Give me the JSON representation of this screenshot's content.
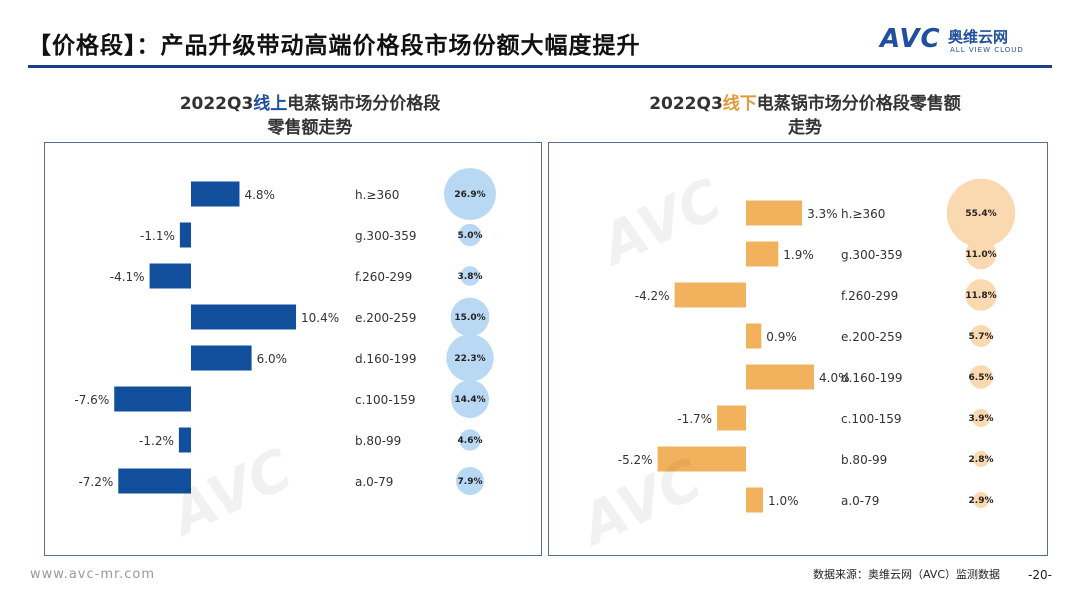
{
  "header": {
    "title": "【价格段】：产品升级带动高端价格段市场份额大幅度提升",
    "logo_main": "AVC",
    "logo_cn": "奥维云网",
    "logo_en": "ALL VIEW CLOUD"
  },
  "left": {
    "title_pre": "2022Q3",
    "title_hl": "线上",
    "title_post": "电蒸锅市场分价格段",
    "title_line2": "零售额走势"
  },
  "right": {
    "title_pre": "2022Q3",
    "title_hl": "线下",
    "title_post": "电蒸锅市场分价格段零售额",
    "title_line2": "走势"
  },
  "footer": {
    "url": "www.avc-mr.com",
    "source": "数据来源：奥维云网（AVC）监测数据",
    "page": "-20-"
  },
  "chart_data": [
    {
      "type": "bar",
      "orientation": "horizontal",
      "categories": [
        "h.≥360",
        "g.300-359",
        "f.260-299",
        "e.200-259",
        "d.160-199",
        "c.100-159",
        "b.80-99",
        "a.0-79"
      ],
      "values": [
        4.8,
        -1.1,
        -4.1,
        10.4,
        6.0,
        -7.6,
        -1.2,
        -7.2
      ],
      "value_labels": [
        "4.8%",
        "-1.1%",
        "-4.1%",
        "10.4%",
        "6.0%",
        "-7.6%",
        "-1.2%",
        "-7.2%"
      ],
      "share_values": [
        26.9,
        5.0,
        3.8,
        15.0,
        22.3,
        14.4,
        4.6,
        7.9
      ],
      "share_labels": [
        "26.9%",
        "5.0%",
        "3.8%",
        "15.0%",
        "22.3%",
        "14.4%",
        "4.6%",
        "7.9%"
      ],
      "bar_color": "#114f9c",
      "bubble_color": "#b8d8f4"
    },
    {
      "type": "bar",
      "orientation": "horizontal",
      "categories": [
        "h.≥360",
        "g.300-359",
        "f.260-299",
        "e.200-259",
        "d.160-199",
        "c.100-159",
        "b.80-99",
        "a.0-79"
      ],
      "values": [
        3.3,
        1.9,
        -4.2,
        0.9,
        4.0,
        -1.7,
        -5.2,
        1.0
      ],
      "value_labels": [
        "3.3%",
        "1.9%",
        "-4.2%",
        "0.9%",
        "4.0%",
        "-1.7%",
        "-5.2%",
        "1.0%"
      ],
      "share_values": [
        55.4,
        11.0,
        11.8,
        5.7,
        6.5,
        3.9,
        2.8,
        2.9
      ],
      "share_labels": [
        "55.4%",
        "11.0%",
        "11.8%",
        "5.7%",
        "6.5%",
        "3.9%",
        "2.8%",
        "2.9%"
      ],
      "bar_color": "#f2b25d",
      "bubble_color": "#fad8b0"
    }
  ]
}
